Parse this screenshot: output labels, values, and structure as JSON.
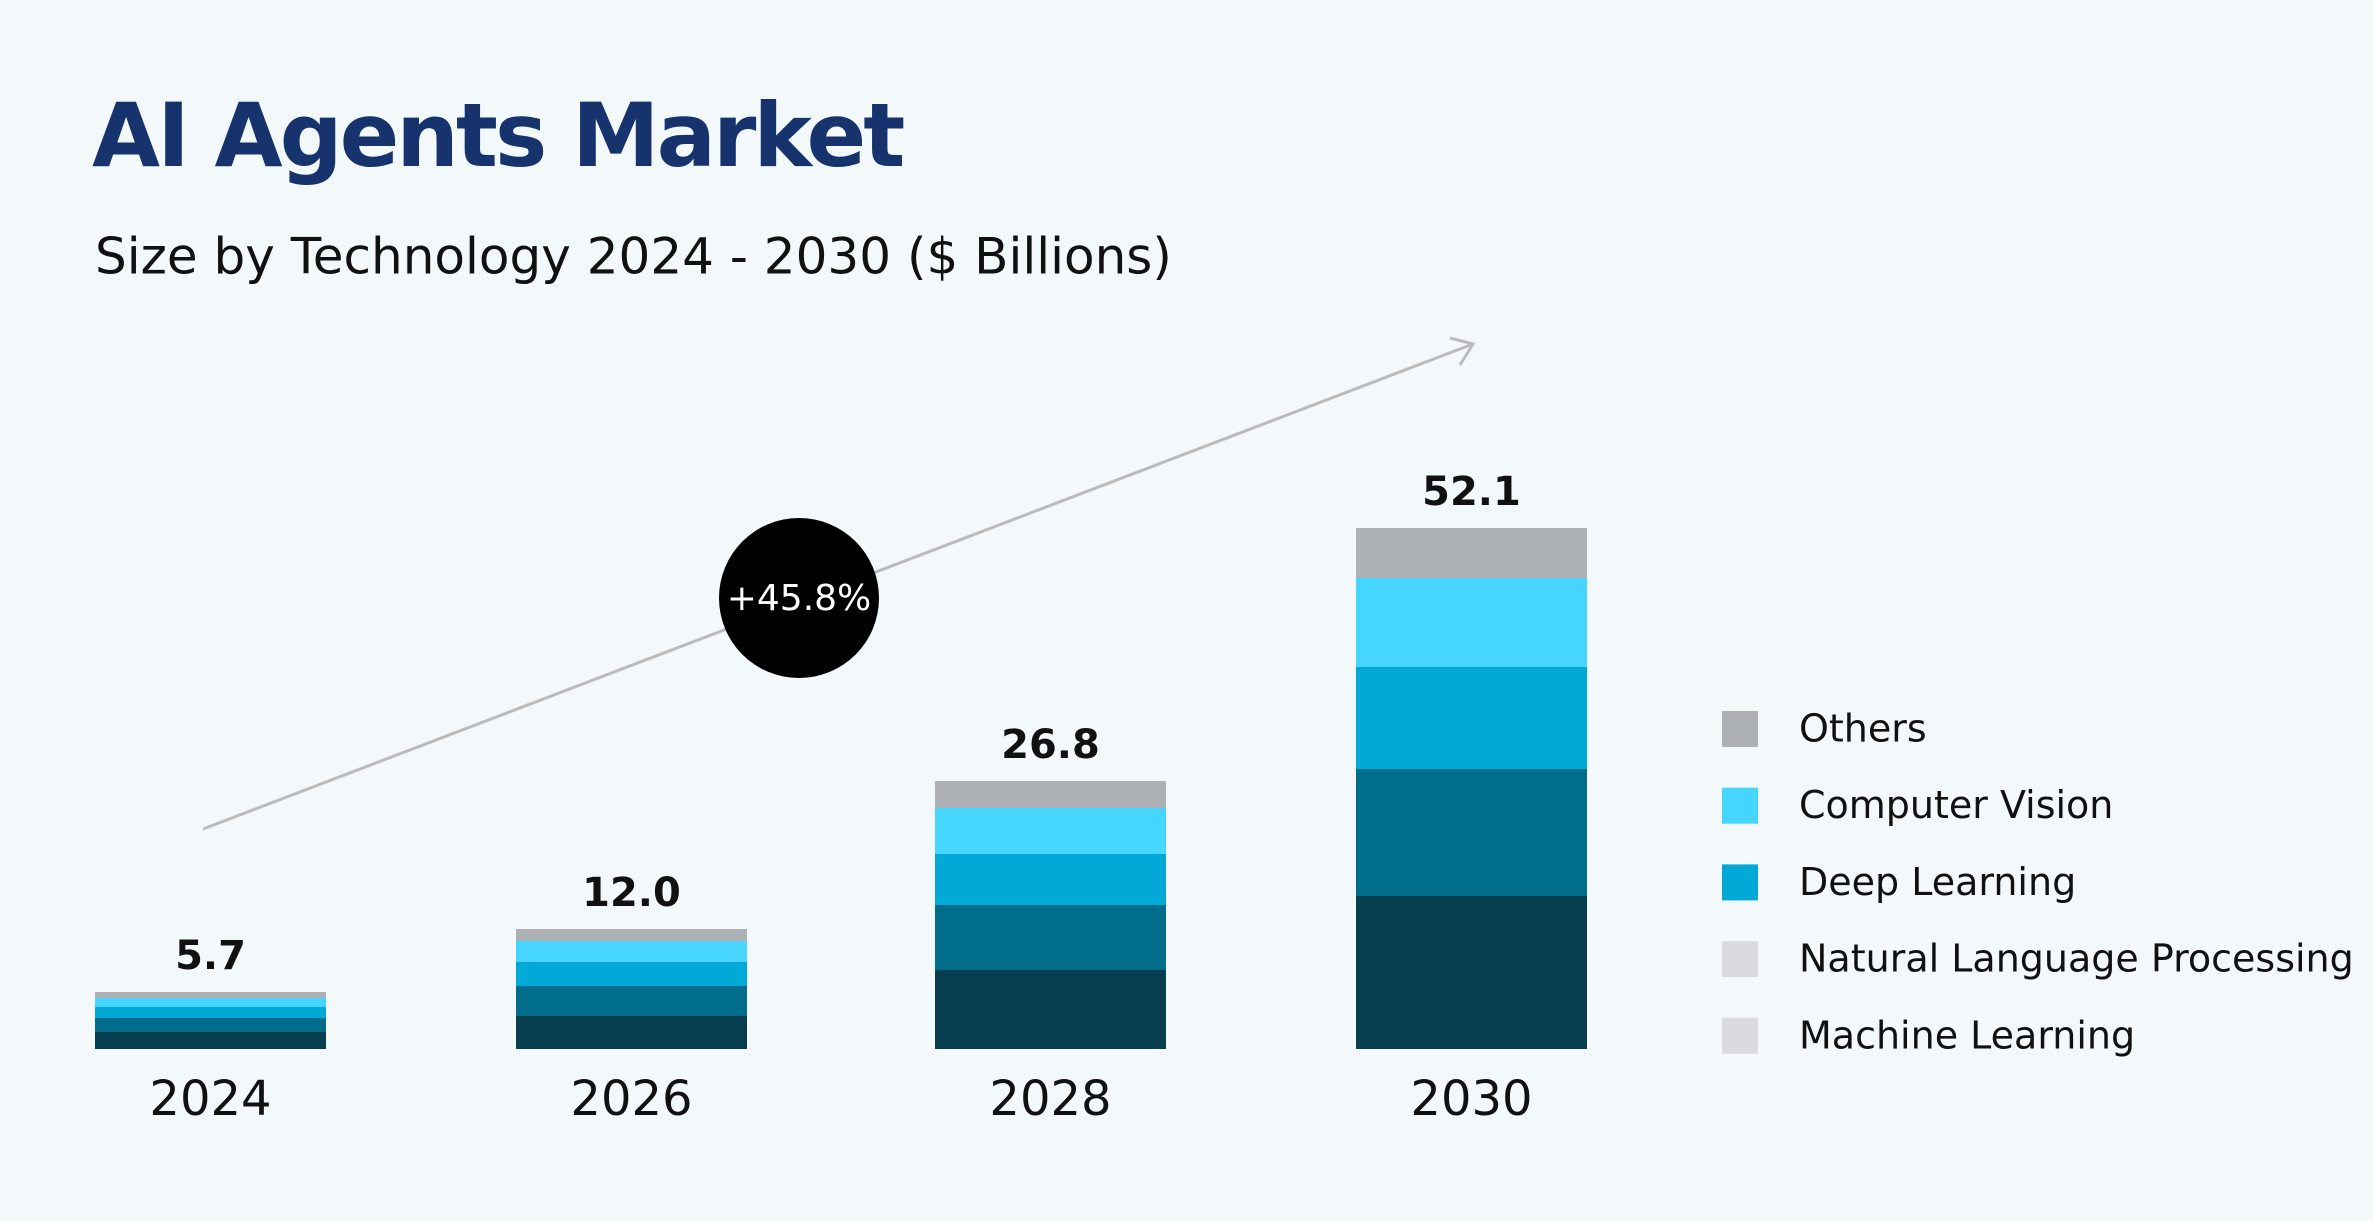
{
  "chart_data": {
    "type": "stacked_bar",
    "title": "AI Agents Market",
    "subtitle": "Size by Technology 2024 - 2030 ($ Billions)",
    "annotation": "+45.8%",
    "categories": [
      "2024",
      "2026",
      "2028",
      "2030"
    ],
    "totals": [
      5.7,
      12.0,
      26.8,
      52.1
    ],
    "total_labels": [
      "5.7",
      "12.0",
      "26.8",
      "52.1"
    ],
    "series": [
      {
        "name": "Machine Learning",
        "color": "#073f50",
        "legend_color": "#d9dbde",
        "values": [
          1.7,
          3.3,
          7.9,
          15.3
        ]
      },
      {
        "name": "Natural Language Processing",
        "color": "#006d8a",
        "legend_color": "#d9dbde",
        "values": [
          1.4,
          3.0,
          6.5,
          12.7
        ]
      },
      {
        "name": "Deep Learning",
        "color": "#03a9d6",
        "legend_color": "#03a9d6",
        "values": [
          1.1,
          2.4,
          5.1,
          10.2
        ]
      },
      {
        "name": "Computer Vision",
        "color": "#46d6fd",
        "legend_color": "#46d6fd",
        "values": [
          0.9,
          2.1,
          4.6,
          8.9
        ]
      },
      {
        "name": "Others",
        "color": "#adb0b5",
        "legend_color": "#adb0b5",
        "values": [
          0.6,
          1.2,
          2.7,
          5.0
        ]
      }
    ]
  }
}
